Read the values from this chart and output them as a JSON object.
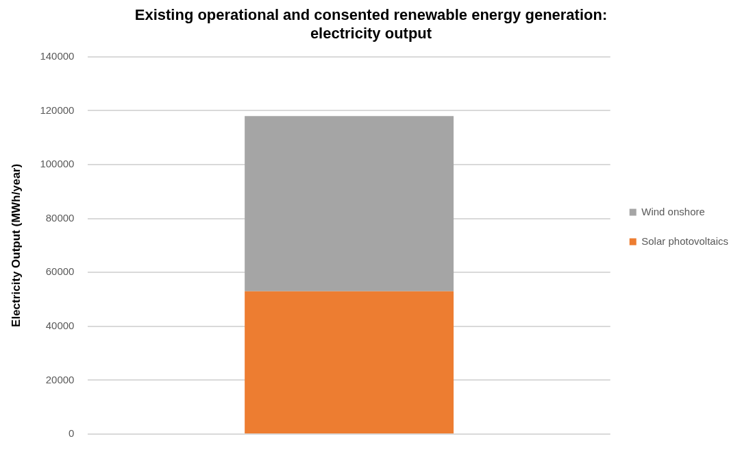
{
  "chart_data": {
    "type": "bar",
    "title": "Existing operational and consented renewable energy generation: electricity output",
    "ylabel": "Electricity Output (MWh/year)",
    "categories": [
      null
    ],
    "stacked": true,
    "series": [
      {
        "name": "Solar photovoltaics",
        "color": "#ed7d31",
        "values": [
          53000
        ]
      },
      {
        "name": "Wind onshore",
        "color": "#a5a5a5",
        "values": [
          65000
        ]
      }
    ],
    "ylim": [
      0,
      140000
    ],
    "yticks": [
      0,
      20000,
      40000,
      60000,
      80000,
      100000,
      120000,
      140000
    ],
    "grid": "y",
    "legend": "right"
  }
}
